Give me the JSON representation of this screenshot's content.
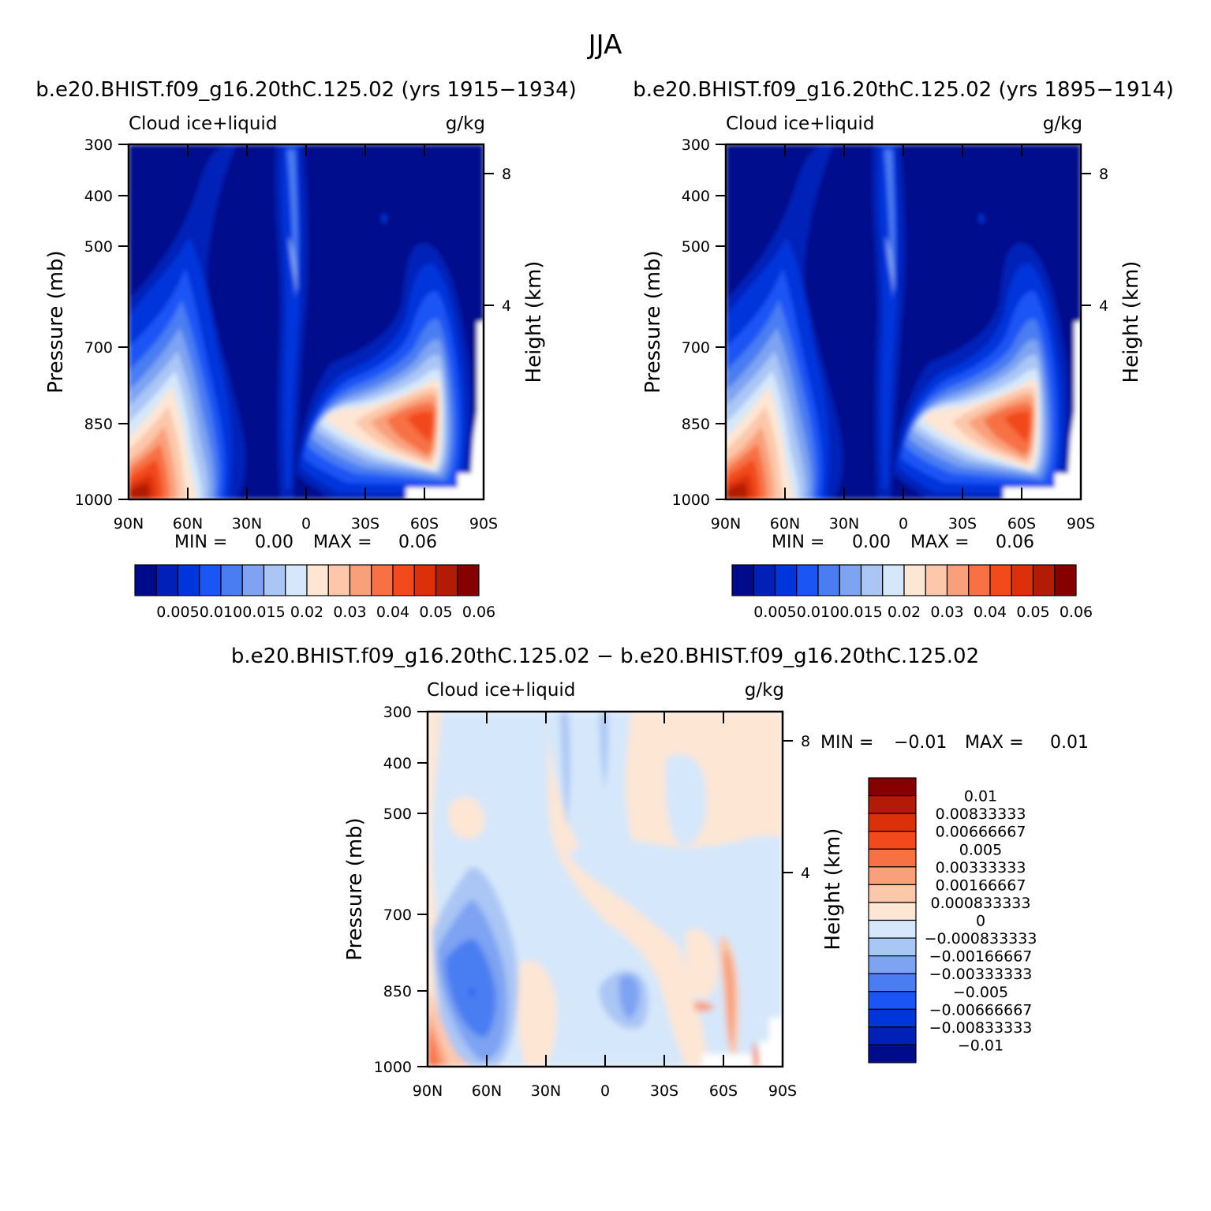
{
  "title": "JJA",
  "panels": [
    {
      "header": "b.e20.BHIST.f09_g16.20thC.125.02 (yrs 1915−1934)",
      "left_label": "Cloud  ice+liquid",
      "right_label": "g/kg",
      "min_label": "MIN =",
      "min_value": "0.00",
      "max_label": "MAX =",
      "max_value": "0.06"
    },
    {
      "header": "b.e20.BHIST.f09_g16.20thC.125.02 (yrs 1895−1914)",
      "left_label": "Cloud  ice+liquid",
      "right_label": "g/kg",
      "min_label": "MIN =",
      "min_value": "0.00",
      "max_label": "MAX =",
      "max_value": "0.06"
    },
    {
      "header": "b.e20.BHIST.f09_g16.20thC.125.02  −  b.e20.BHIST.f09_g16.20thC.125.02",
      "left_label": "Cloud  ice+liquid",
      "right_label": "g/kg",
      "min_label": "MIN =",
      "min_value": "−0.01",
      "max_label": "MAX =",
      "max_value": "0.01"
    }
  ],
  "axes": {
    "ylabel": "Pressure  (mb)",
    "y2label": "Height  (km)",
    "x_ticks": [
      "90N",
      "60N",
      "30N",
      "0",
      "30S",
      "60S",
      "90S"
    ],
    "y_ticks": [
      "300",
      "400",
      "500",
      "700",
      "850",
      "1000"
    ],
    "y2_ticks": [
      "8",
      "4"
    ]
  },
  "colorbar_abs": {
    "colors": [
      "#000b8c",
      "#0020b8",
      "#0035dc",
      "#1c55f5",
      "#4a7df2",
      "#7da3f2",
      "#aac6f5",
      "#d5e7fa",
      "#fde6d4",
      "#fcc7aa",
      "#f9a07a",
      "#f77144",
      "#f24a1c",
      "#dc300b",
      "#b21b05",
      "#870000"
    ],
    "labels": [
      "0.005",
      "0.010",
      "0.015",
      "0.02",
      "0.03",
      "0.04",
      "0.05",
      "0.06"
    ]
  },
  "colorbar_diff": {
    "colors": [
      "#870000",
      "#b21b05",
      "#dc300b",
      "#f24a1c",
      "#f77144",
      "#f9a07a",
      "#fcc7aa",
      "#fde6d4",
      "#d5e7fa",
      "#aac6f5",
      "#7da3f2",
      "#4a7df2",
      "#1c55f5",
      "#0035dc",
      "#0020b8",
      "#000b8c"
    ],
    "labels": [
      "0.01",
      "0.00833333",
      "0.00666667",
      "0.005",
      "0.00333333",
      "0.00166667",
      "0.000833333",
      "0",
      "−0.000833333",
      "−0.00166667",
      "−0.00333333",
      "−0.005",
      "−0.00666667",
      "−0.00833333",
      "−0.01"
    ]
  },
  "chart_data": [
    {
      "type": "heatmap",
      "title": "b.e20.BHIST.f09_g16.20thC.125.02 (yrs 1915−1934)",
      "variable": "Cloud ice+liquid",
      "units": "g/kg",
      "x": [
        "90N",
        "60N",
        "30N",
        "0",
        "30S",
        "60S",
        "90S"
      ],
      "xlim": [
        90,
        -90
      ],
      "ylabel": "Pressure (mb)",
      "y_ticks": [
        300,
        400,
        500,
        700,
        850,
        1000
      ],
      "ylim": [
        300,
        1000
      ],
      "y2label": "Height (km)",
      "y2_ticks": [
        8,
        4
      ],
      "min": 0.0,
      "max": 0.06,
      "contour_levels": [
        0.005,
        0.01,
        0.015,
        0.02,
        0.025,
        0.03,
        0.035,
        0.04,
        0.045,
        0.05,
        0.055,
        0.06
      ]
    },
    {
      "type": "heatmap",
      "title": "b.e20.BHIST.f09_g16.20thC.125.02 (yrs 1895−1914)",
      "variable": "Cloud ice+liquid",
      "units": "g/kg",
      "x": [
        "90N",
        "60N",
        "30N",
        "0",
        "30S",
        "60S",
        "90S"
      ],
      "xlim": [
        90,
        -90
      ],
      "ylabel": "Pressure (mb)",
      "y_ticks": [
        300,
        400,
        500,
        700,
        850,
        1000
      ],
      "ylim": [
        300,
        1000
      ],
      "y2label": "Height (km)",
      "y2_ticks": [
        8,
        4
      ],
      "min": 0.0,
      "max": 0.06,
      "contour_levels": [
        0.005,
        0.01,
        0.015,
        0.02,
        0.025,
        0.03,
        0.035,
        0.04,
        0.045,
        0.05,
        0.055,
        0.06
      ]
    },
    {
      "type": "heatmap",
      "title": "b.e20.BHIST.f09_g16.20thC.125.02 − b.e20.BHIST.f09_g16.20thC.125.02",
      "variable": "Cloud ice+liquid",
      "units": "g/kg",
      "x": [
        "90N",
        "60N",
        "30N",
        "0",
        "30S",
        "60S",
        "90S"
      ],
      "xlim": [
        90,
        -90
      ],
      "ylabel": "Pressure (mb)",
      "y_ticks": [
        300,
        400,
        500,
        700,
        850,
        1000
      ],
      "ylim": [
        300,
        1000
      ],
      "y2label": "Height (km)",
      "y2_ticks": [
        8,
        4
      ],
      "min": -0.01,
      "max": 0.01,
      "contour_levels": [
        -0.01,
        -0.00833333,
        -0.00666667,
        -0.005,
        -0.00333333,
        -0.00166667,
        -0.000833333,
        0,
        0.000833333,
        0.00166667,
        0.00333333,
        0.005,
        0.00666667,
        0.00833333,
        0.01
      ]
    }
  ]
}
